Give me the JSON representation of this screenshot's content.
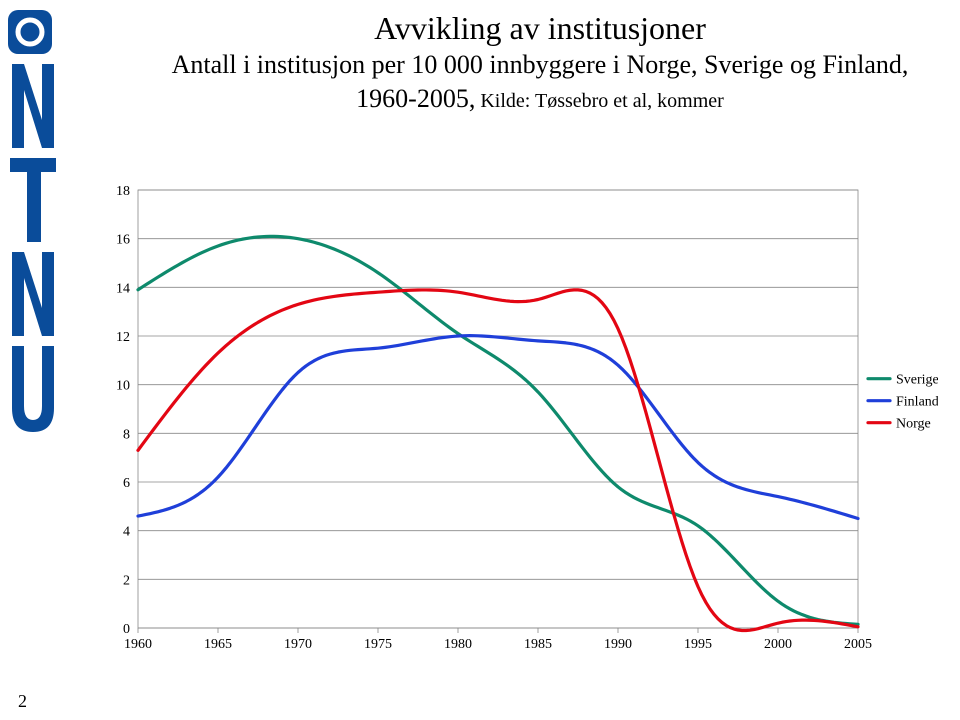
{
  "page_number": "2",
  "title": "Avvikling av institusjoner",
  "subtitle": "Antall i institusjon per 10 000 innbyggere i Norge, Sverige og Finland, 1960-2005,",
  "subtitle_suffix": " Kilde: Tøssebro et al, kommer",
  "sidebar": {
    "logo_color": "#0a4c9a",
    "text": "NTNU"
  },
  "chart": {
    "type": "line",
    "background_color": "#ffffff",
    "plot_border_color": "#888888",
    "grid_color": "#888888",
    "grid_visible": true,
    "x_axis": {
      "ticks": [
        1960,
        1965,
        1970,
        1975,
        1980,
        1985,
        1990,
        1995,
        2000,
        2005
      ],
      "lim": [
        1960,
        2005
      ],
      "label_fontsize": 14
    },
    "y_axis": {
      "ticks": [
        0,
        2,
        4,
        6,
        8,
        10,
        12,
        14,
        16,
        18
      ],
      "lim": [
        0,
        18
      ],
      "label_fontsize": 14
    },
    "series": [
      {
        "name": "Sverige",
        "color": "#0e8a6c",
        "line_width": 3.2,
        "data": [
          {
            "x": 1960,
            "y": 13.9
          },
          {
            "x": 1965,
            "y": 15.7
          },
          {
            "x": 1970,
            "y": 16.0
          },
          {
            "x": 1975,
            "y": 14.6
          },
          {
            "x": 1980,
            "y": 12.1
          },
          {
            "x": 1985,
            "y": 9.7
          },
          {
            "x": 1990,
            "y": 5.8
          },
          {
            "x": 1995,
            "y": 4.2
          },
          {
            "x": 2000,
            "y": 1.1
          },
          {
            "x": 2005,
            "y": 0.15
          }
        ]
      },
      {
        "name": "Finland",
        "color": "#1f3fd9",
        "line_width": 3.2,
        "data": [
          {
            "x": 1960,
            "y": 4.6
          },
          {
            "x": 1965,
            "y": 6.2
          },
          {
            "x": 1970,
            "y": 10.5
          },
          {
            "x": 1975,
            "y": 11.5
          },
          {
            "x": 1980,
            "y": 12.0
          },
          {
            "x": 1985,
            "y": 11.8
          },
          {
            "x": 1990,
            "y": 10.8
          },
          {
            "x": 1995,
            "y": 6.8
          },
          {
            "x": 2000,
            "y": 5.4
          },
          {
            "x": 2005,
            "y": 4.5
          }
        ]
      },
      {
        "name": "Norge",
        "color": "#e30613",
        "line_width": 3.2,
        "data": [
          {
            "x": 1960,
            "y": 7.3
          },
          {
            "x": 1965,
            "y": 11.3
          },
          {
            "x": 1970,
            "y": 13.3
          },
          {
            "x": 1975,
            "y": 13.8
          },
          {
            "x": 1980,
            "y": 13.8
          },
          {
            "x": 1985,
            "y": 13.5
          },
          {
            "x": 1990,
            "y": 12.3
          },
          {
            "x": 1995,
            "y": 1.7
          },
          {
            "x": 2000,
            "y": 0.2
          },
          {
            "x": 2005,
            "y": 0.05
          }
        ]
      }
    ],
    "legend": {
      "position": "right",
      "fontsize": 14
    }
  }
}
